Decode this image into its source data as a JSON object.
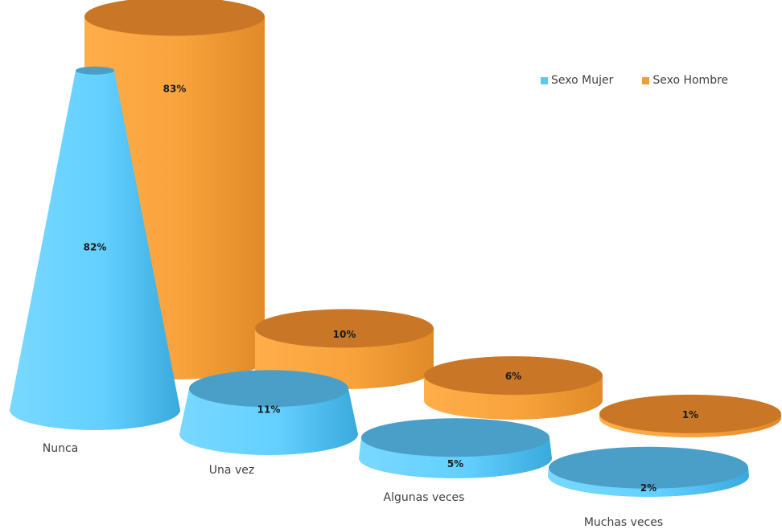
{
  "chart_data": {
    "type": "bar",
    "title": "",
    "xlabel": "",
    "ylabel": "",
    "ylim": [
      0,
      100
    ],
    "unit": "%",
    "grid": false,
    "legend_position": "top-right",
    "categories": [
      "Nunca",
      "Una vez",
      "Algunas veces",
      "Muchas veces"
    ],
    "series": [
      {
        "name": "Sexo Mujer",
        "shape": "cone",
        "color": "#4fc3f7",
        "values": [
          82,
          11,
          5,
          2
        ],
        "labels": [
          "82%",
          "11%",
          "5%",
          "2%"
        ]
      },
      {
        "name": "Sexo Hombre",
        "shape": "cylinder",
        "color": "#f39c34",
        "values": [
          83,
          10,
          6,
          1
        ],
        "labels": [
          "83%",
          "10%",
          "6%",
          "1%"
        ]
      }
    ]
  },
  "legend": {
    "mujer": "Sexo Mujer",
    "hombre": "Sexo Hombre"
  },
  "colors": {
    "mujer_side": "#5ec8f3",
    "mujer_top": "#4a9fc9",
    "hombre_side": "#f39c34",
    "hombre_top": "#c97726"
  }
}
